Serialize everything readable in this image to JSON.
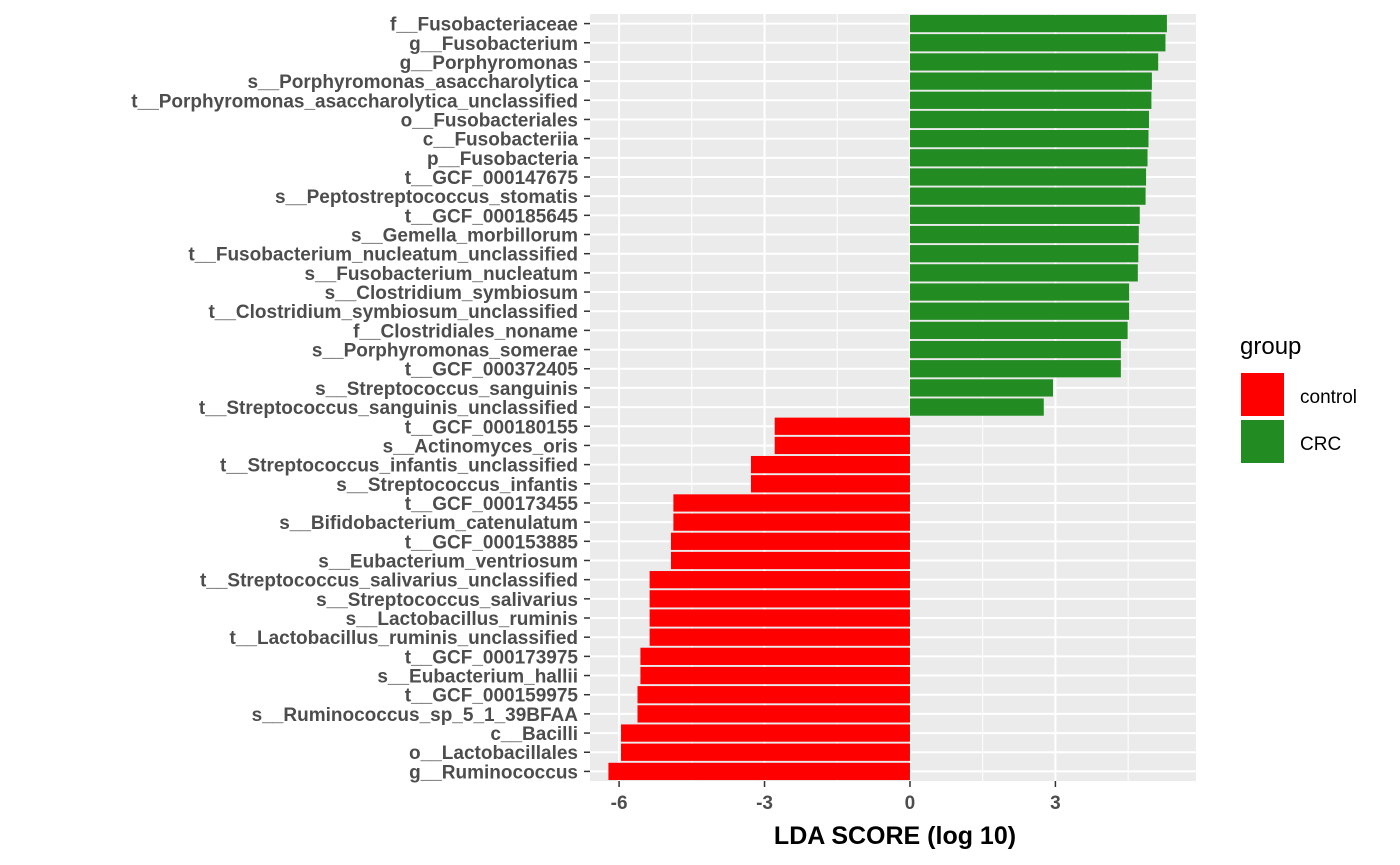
{
  "chart_data": {
    "type": "bar",
    "orientation": "horizontal",
    "xlabel": "LDA SCORE (log 10)",
    "xlim": [
      -6.6,
      5.9
    ],
    "xticks": [
      -6,
      -3,
      0,
      3
    ],
    "grid": true,
    "legend": {
      "title": "group",
      "placement": "right",
      "entries": [
        {
          "name": "control",
          "color": "#ff0000"
        },
        {
          "name": "CRC",
          "color": "#228b22"
        }
      ]
    },
    "categories": [
      "f__Fusobacteriaceae",
      "g__Fusobacterium",
      "g__Porphyromonas",
      "s__Porphyromonas_asaccharolytica",
      "t__Porphyromonas_asaccharolytica_unclassified",
      "o__Fusobacteriales",
      "c__Fusobacteriia",
      "p__Fusobacteria",
      "t__GCF_000147675",
      "s__Peptostreptococcus_stomatis",
      "t__GCF_000185645",
      "s__Gemella_morbillorum",
      "t__Fusobacterium_nucleatum_unclassified",
      "s__Fusobacterium_nucleatum",
      "s__Clostridium_symbiosum",
      "t__Clostridium_symbiosum_unclassified",
      "f__Clostridiales_noname",
      "s__Porphyromonas_somerae",
      "t__GCF_000372405",
      "s__Streptococcus_sanguinis",
      "t__Streptococcus_sanguinis_unclassified",
      "t__GCF_000180155",
      "s__Actinomyces_oris",
      "t__Streptococcus_infantis_unclassified",
      "s__Streptococcus_infantis",
      "t__GCF_000173455",
      "s__Bifidobacterium_catenulatum",
      "t__GCF_000153885",
      "s__Eubacterium_ventriosum",
      "t__Streptococcus_salivarius_unclassified",
      "s__Streptococcus_salivarius",
      "s__Lactobacillus_ruminis",
      "t__Lactobacillus_ruminis_unclassified",
      "t__GCF_000173975",
      "s__Eubacterium_hallii",
      "t__GCF_000159975",
      "s__Ruminococcus_sp_5_1_39BFAA",
      "c__Bacilli",
      "o__Lactobacillales",
      "g__Ruminococcus"
    ],
    "values": [
      5.3,
      5.27,
      5.12,
      4.99,
      4.98,
      4.93,
      4.92,
      4.9,
      4.87,
      4.86,
      4.74,
      4.72,
      4.71,
      4.7,
      4.52,
      4.52,
      4.49,
      4.35,
      4.35,
      2.95,
      2.76,
      -2.79,
      -2.79,
      -3.28,
      -3.28,
      -4.88,
      -4.88,
      -4.93,
      -4.93,
      -5.37,
      -5.37,
      -5.37,
      -5.37,
      -5.56,
      -5.56,
      -5.62,
      -5.62,
      -5.96,
      -5.96,
      -6.22
    ],
    "groups": [
      "CRC",
      "CRC",
      "CRC",
      "CRC",
      "CRC",
      "CRC",
      "CRC",
      "CRC",
      "CRC",
      "CRC",
      "CRC",
      "CRC",
      "CRC",
      "CRC",
      "CRC",
      "CRC",
      "CRC",
      "CRC",
      "CRC",
      "CRC",
      "CRC",
      "control",
      "control",
      "control",
      "control",
      "control",
      "control",
      "control",
      "control",
      "control",
      "control",
      "control",
      "control",
      "control",
      "control",
      "control",
      "control",
      "control",
      "control",
      "control"
    ]
  }
}
